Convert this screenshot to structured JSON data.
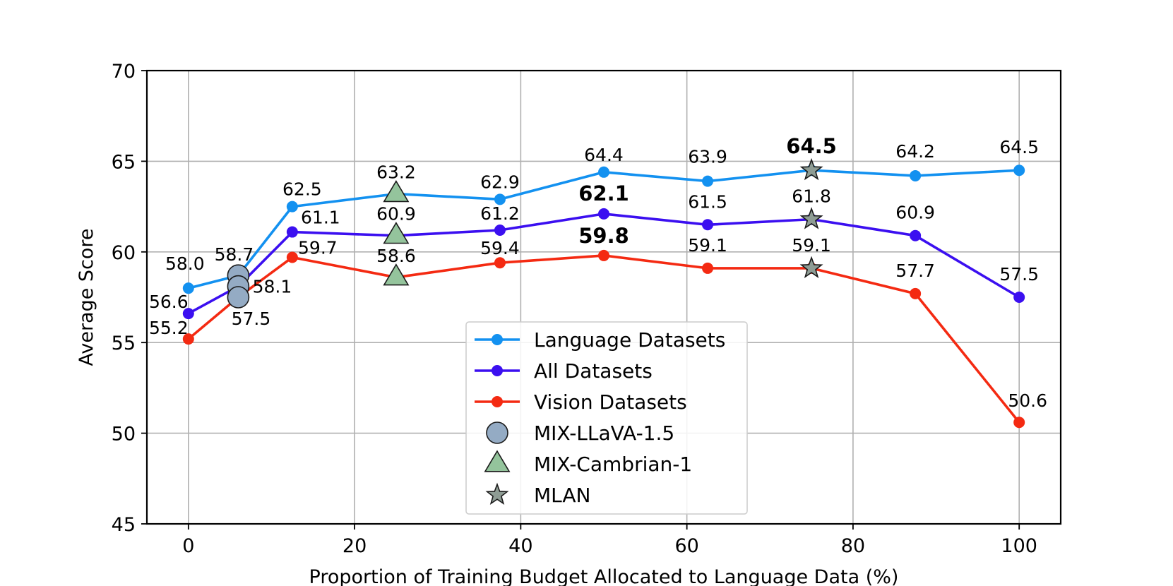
{
  "chart_data": {
    "type": "line",
    "xlabel": "Proportion of Training Budget Allocated to Language Data (%)",
    "ylabel": "Average Score",
    "xlim": [
      -5,
      105
    ],
    "ylim": [
      45,
      70
    ],
    "x_ticks": [
      "0",
      "20",
      "40",
      "60",
      "80",
      "100"
    ],
    "y_ticks": [
      "45",
      "50",
      "55",
      "60",
      "65",
      "70"
    ],
    "grid": true,
    "legend_position": "lower-center",
    "series": [
      {
        "name": "Language Datasets",
        "color": "#1391f0",
        "marker": "circle",
        "x": [
          0,
          12.5,
          37.5,
          50,
          62.5,
          75,
          87.5,
          100
        ],
        "y": [
          58.0,
          62.5,
          62.9,
          64.4,
          63.9,
          64.5,
          64.2,
          64.5
        ],
        "labels": [
          "58.0",
          "62.5",
          "62.9",
          "64.4",
          "63.9",
          "64.5",
          "64.2",
          "64.5"
        ],
        "label_bold": [
          false,
          false,
          false,
          false,
          false,
          true,
          false,
          false
        ],
        "connector_x": [
          0,
          6,
          12.5,
          25,
          37.5,
          50,
          62.5,
          75,
          87.5,
          100
        ],
        "connector_y": [
          58.0,
          58.7,
          62.5,
          63.2,
          62.9,
          64.4,
          63.9,
          64.5,
          64.2,
          64.5
        ]
      },
      {
        "name": "All Datasets",
        "color": "#3b0ff0",
        "marker": "circle",
        "x": [
          0,
          12.5,
          37.5,
          50,
          62.5,
          75,
          87.5,
          100
        ],
        "y": [
          56.6,
          61.1,
          61.2,
          62.1,
          61.5,
          61.8,
          60.9,
          57.5
        ],
        "labels": [
          "56.6",
          "61.1",
          "61.2",
          "62.1",
          "61.5",
          "61.8",
          "60.9",
          "57.5"
        ],
        "label_bold": [
          false,
          false,
          false,
          true,
          false,
          false,
          false,
          false
        ],
        "connector_x": [
          0,
          6,
          12.5,
          25,
          37.5,
          50,
          62.5,
          75,
          87.5,
          100
        ],
        "connector_y": [
          56.6,
          58.1,
          61.1,
          60.9,
          61.2,
          62.1,
          61.5,
          61.8,
          60.9,
          57.5
        ]
      },
      {
        "name": "Vision Datasets",
        "color": "#f42a12",
        "marker": "circle",
        "x": [
          0,
          12.5,
          37.5,
          50,
          62.5,
          75,
          87.5,
          100
        ],
        "y": [
          55.2,
          59.7,
          59.4,
          59.8,
          59.1,
          59.1,
          57.7,
          50.6
        ],
        "labels": [
          "55.2",
          "59.7",
          "59.4",
          "59.8",
          "59.1",
          "59.1",
          "57.7",
          "50.6"
        ],
        "label_bold": [
          false,
          false,
          false,
          true,
          false,
          false,
          false,
          false
        ],
        "connector_x": [
          0,
          6,
          12.5,
          25,
          37.5,
          50,
          62.5,
          75,
          87.5,
          100
        ],
        "connector_y": [
          55.2,
          57.5,
          59.7,
          58.6,
          59.4,
          59.8,
          59.1,
          59.1,
          57.7,
          50.6
        ]
      }
    ],
    "special_points": [
      {
        "name": "MIX-LLaVA-1.5",
        "marker": "circle",
        "color": "#94abc4",
        "x": [
          6,
          6,
          6
        ],
        "y": [
          58.7,
          58.1,
          57.5
        ],
        "labels": [
          "58.7",
          "58.1",
          "57.5"
        ]
      },
      {
        "name": "MIX-Cambrian-1",
        "marker": "triangle",
        "color": "#94c49c",
        "x": [
          25,
          25,
          25
        ],
        "y": [
          63.2,
          60.9,
          58.6
        ],
        "labels": [
          "63.2",
          "60.9",
          "58.6"
        ]
      },
      {
        "name": "MLAN",
        "marker": "star",
        "color": "#8e9c94",
        "x": [
          75,
          75,
          75
        ],
        "y": [
          64.5,
          61.8,
          59.1
        ],
        "labels": [],
        "label_bold": []
      }
    ],
    "legend": [
      "Language Datasets",
      "All Datasets",
      "Vision Datasets",
      "MIX-LLaVA-1.5",
      "MIX-Cambrian-1",
      "MLAN"
    ]
  }
}
